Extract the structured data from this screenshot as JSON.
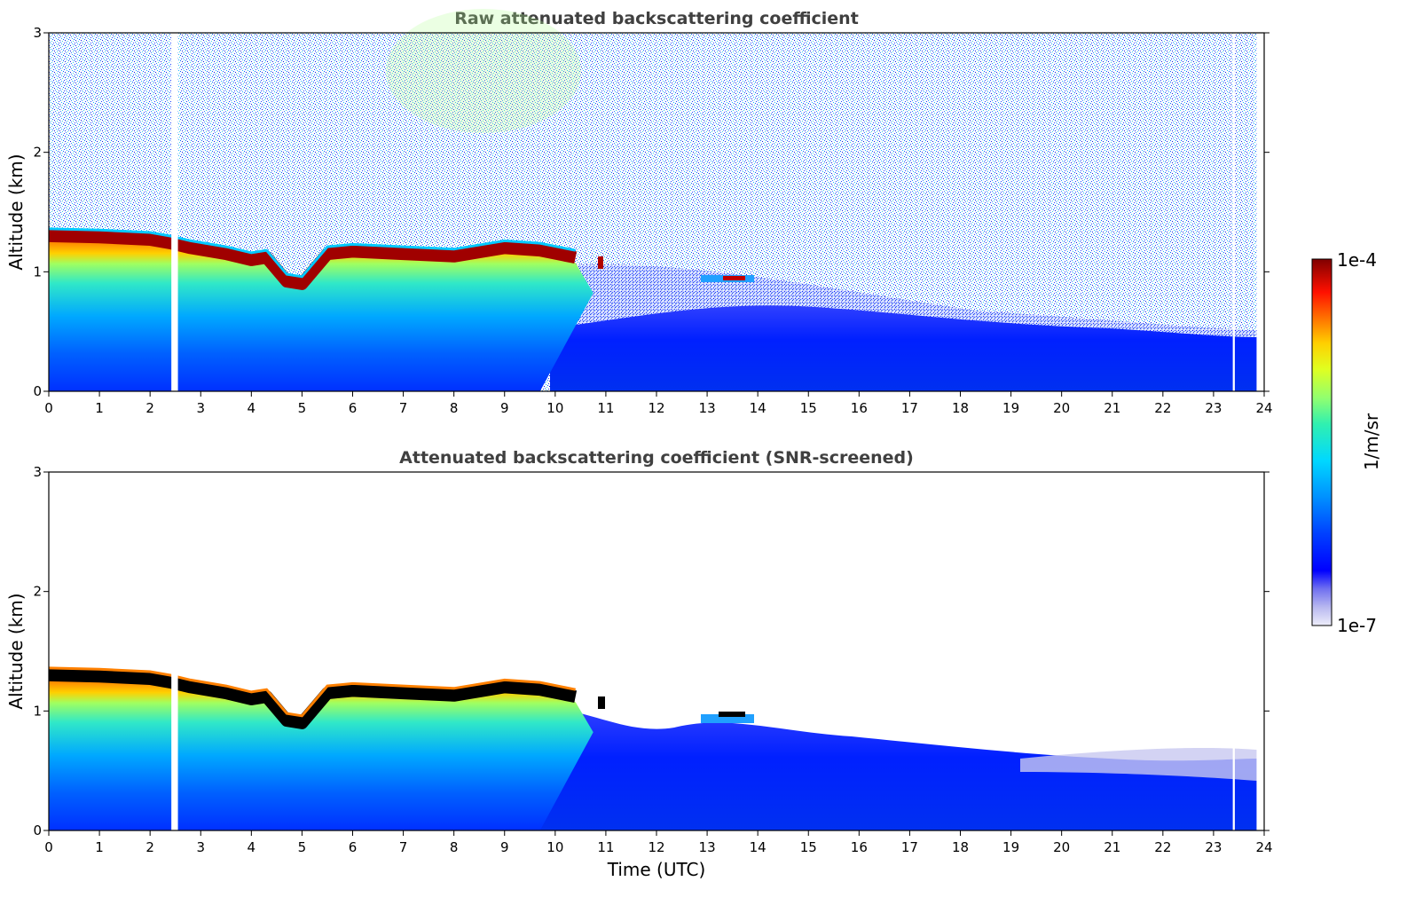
{
  "chart_data": [
    {
      "type": "heatmap",
      "title": "Raw attenuated backscattering coefficient",
      "xlabel": "",
      "ylabel": "Altitude (km)",
      "xlim": [
        0,
        24
      ],
      "ylim": [
        0,
        3
      ],
      "x_ticks": [
        "0",
        "1",
        "2",
        "3",
        "4",
        "5",
        "6",
        "7",
        "8",
        "9",
        "10",
        "11",
        "12",
        "13",
        "14",
        "15",
        "16",
        "17",
        "18",
        "19",
        "20",
        "21",
        "22",
        "23",
        "24"
      ],
      "y_ticks": [
        "0",
        "1",
        "2",
        "3"
      ],
      "layer_top_km": [
        [
          0,
          1.3
        ],
        [
          1,
          1.29
        ],
        [
          2,
          1.27
        ],
        [
          2.4,
          1.24
        ],
        [
          2.8,
          1.2
        ],
        [
          3.5,
          1.15
        ],
        [
          4.0,
          1.1
        ],
        [
          4.3,
          1.12
        ],
        [
          4.7,
          0.92
        ],
        [
          5.0,
          0.9
        ],
        [
          5.5,
          1.15
        ],
        [
          6,
          1.17
        ],
        [
          7,
          1.15
        ],
        [
          8,
          1.13
        ],
        [
          9,
          1.2
        ],
        [
          9.7,
          1.18
        ],
        [
          10.4,
          1.12
        ]
      ],
      "gaps_x": [
        [
          2.42,
          2.55
        ],
        [
          23.38,
          23.42
        ]
      ],
      "data_end_x": 23.85
    },
    {
      "type": "heatmap",
      "title": "Attenuated backscattering coefficient (SNR-screened)",
      "xlabel": "Time (UTC)",
      "ylabel": "Altitude (km)",
      "xlim": [
        0,
        24
      ],
      "ylim": [
        0,
        3
      ],
      "x_ticks": [
        "0",
        "1",
        "2",
        "3",
        "4",
        "5",
        "6",
        "7",
        "8",
        "9",
        "10",
        "11",
        "12",
        "13",
        "14",
        "15",
        "16",
        "17",
        "18",
        "19",
        "20",
        "21",
        "22",
        "23",
        "24"
      ],
      "y_ticks": [
        "0",
        "1",
        "2",
        "3"
      ],
      "layer_top_km": [
        [
          0,
          1.3
        ],
        [
          1,
          1.29
        ],
        [
          2,
          1.27
        ],
        [
          2.4,
          1.24
        ],
        [
          2.8,
          1.2
        ],
        [
          3.5,
          1.15
        ],
        [
          4.0,
          1.1
        ],
        [
          4.3,
          1.12
        ],
        [
          4.7,
          0.92
        ],
        [
          5.0,
          0.9
        ],
        [
          5.5,
          1.15
        ],
        [
          6,
          1.17
        ],
        [
          7,
          1.15
        ],
        [
          8,
          1.13
        ],
        [
          9,
          1.2
        ],
        [
          9.7,
          1.18
        ],
        [
          10.4,
          1.12
        ]
      ],
      "gaps_x": [
        [
          2.42,
          2.55
        ],
        [
          23.38,
          23.42
        ]
      ],
      "data_end_x": 23.85
    }
  ],
  "colorbar": {
    "label": "1/m/sr",
    "max_label": "1e-4",
    "min_label": "1e-7",
    "colors": [
      "#e8e8f8",
      "#b8b8f0",
      "#8080f0",
      "#0000ff",
      "#0040ff",
      "#0090ff",
      "#00d0ff",
      "#20e0c0",
      "#80ff80",
      "#d0ff30",
      "#ffe000",
      "#ff9000",
      "#ff3000",
      "#d00000",
      "#800000"
    ]
  }
}
